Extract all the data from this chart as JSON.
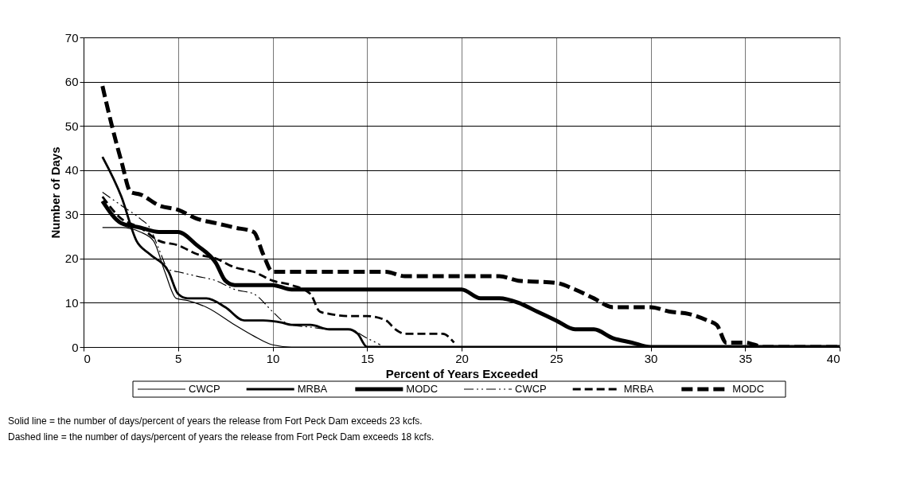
{
  "chart_data": {
    "type": "line",
    "xlabel": "Percent of Years Exceeded",
    "ylabel": "Number of Days",
    "xlim": [
      0,
      40
    ],
    "xticks": [
      0,
      5,
      10,
      15,
      20,
      25,
      30,
      35,
      40
    ],
    "ylim": [
      0,
      70
    ],
    "yticks": [
      0,
      10,
      20,
      30,
      40,
      50,
      60,
      70
    ],
    "grid": true,
    "legend": "bottom",
    "marker": "none",
    "series": [
      {
        "name": "CWCP",
        "color": "#000000",
        "line_style": "solid",
        "x": [
          1,
          2,
          3,
          3.7,
          4.3,
          4.9,
          5.5,
          6.5,
          8,
          9,
          10,
          11,
          40
        ],
        "values": [
          27,
          27,
          26,
          24,
          17,
          11,
          10.5,
          9,
          5,
          2.5,
          0.5,
          0,
          0
        ]
      },
      {
        "name": "MRBA",
        "color": "#000000",
        "line_style": "solid",
        "x": [
          1,
          2,
          2.8,
          3.5,
          4.5,
          5,
          5.5,
          6.5,
          7.5,
          8.5,
          9.5,
          10.5,
          11,
          12,
          13,
          14,
          14.5,
          15,
          40
        ],
        "values": [
          43,
          34,
          24,
          21,
          17,
          12,
          11,
          11,
          9,
          6,
          6,
          5.5,
          5,
          5,
          4,
          4,
          3,
          0,
          0
        ]
      },
      {
        "name": "MODC",
        "color": "#000000",
        "line_style": "solid",
        "x": [
          1,
          2,
          3,
          4,
          5,
          6,
          7,
          7.5,
          8,
          10,
          11,
          20,
          21,
          22,
          23,
          24,
          25,
          26,
          27,
          28,
          29,
          30,
          40
        ],
        "values": [
          33,
          28,
          27,
          26,
          26,
          23,
          19,
          15,
          14,
          14,
          13,
          13,
          11,
          11,
          10,
          8,
          6,
          4,
          4,
          2,
          1,
          0,
          0
        ]
      },
      {
        "name": "CWCP",
        "color": "#000000",
        "line_style": "dashed",
        "x": [
          1,
          2,
          3,
          3.5,
          4,
          4.5,
          5,
          6,
          7,
          8,
          9,
          10,
          10.5,
          11,
          12,
          13,
          14,
          15,
          15.7
        ],
        "values": [
          35,
          32,
          29,
          27,
          22,
          17.5,
          17,
          16,
          15,
          13,
          12,
          8,
          6,
          5,
          4.5,
          4,
          4,
          2,
          0.5
        ]
      },
      {
        "name": "MRBA",
        "color": "#000000",
        "line_style": "dashed",
        "x": [
          1,
          2,
          3,
          4,
          5,
          6,
          7,
          8,
          9,
          10,
          11,
          12,
          12.5,
          13,
          14,
          15,
          16,
          16.5,
          17,
          18,
          19,
          19.6
        ],
        "values": [
          34,
          29,
          27,
          24,
          23,
          21,
          20,
          18,
          17,
          15,
          14,
          12,
          8,
          7.5,
          7,
          7,
          6,
          4,
          3,
          3,
          3,
          1
        ]
      },
      {
        "name": "MODC",
        "color": "#000000",
        "line_style": "dashed",
        "x": [
          1,
          1.5,
          2,
          2.5,
          3,
          4,
          5,
          6,
          7,
          8,
          9,
          9.5,
          10,
          11,
          16,
          17,
          22,
          23,
          25,
          26,
          27,
          28,
          30,
          31,
          32,
          33,
          33.5,
          34,
          35,
          36,
          40
        ],
        "values": [
          59,
          50,
          42,
          35,
          34.5,
          32,
          31,
          29,
          28,
          27,
          26,
          21,
          17,
          17,
          17,
          16,
          16,
          15,
          14.5,
          13,
          11,
          9,
          9,
          8,
          7.5,
          6,
          5,
          1,
          1,
          0,
          0
        ]
      }
    ],
    "annotations": [
      "Solid line = the number of days/percent of years the release from Fort Peck Dam exceeds 23 kcfs.",
      "Dashed line = the number of days/percent of years the release from Fort Peck Dam exceeds 18 kcfs."
    ]
  }
}
